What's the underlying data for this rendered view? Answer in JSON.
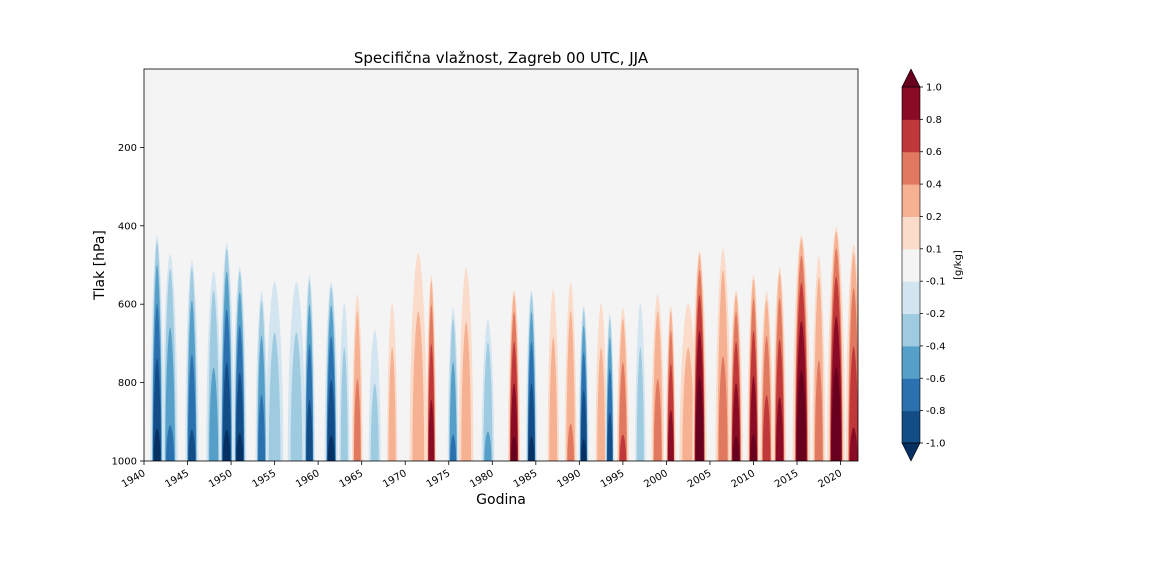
{
  "chart_data": {
    "type": "heatmap",
    "title": "Specifična vlažnost, Zagreb 00 UTC, JJA",
    "xlabel": "Godina",
    "ylabel": "Tlak [hPa]",
    "x_ticks": [
      "1940",
      "1945",
      "1950",
      "1955",
      "1960",
      "1965",
      "1970",
      "1975",
      "1980",
      "1985",
      "1990",
      "1995",
      "2000",
      "2005",
      "2010",
      "2015",
      "2020"
    ],
    "y_ticks": [
      "200",
      "400",
      "600",
      "800",
      "1000"
    ],
    "xlim": [
      1940,
      2022
    ],
    "ylim": [
      1000,
      0
    ],
    "y_reversed": true,
    "colorbar": {
      "label": "[g/kg]",
      "levels": [
        -1.0,
        -0.8,
        -0.6,
        -0.4,
        -0.2,
        -0.1,
        0.1,
        0.2,
        0.4,
        0.6,
        0.8,
        1.0
      ],
      "tick_labels": [
        "-1.0",
        "-0.8",
        "-0.6",
        "-0.4",
        "-0.2",
        "-0.1",
        "0.1",
        "0.2",
        "0.4",
        "0.6",
        "0.8",
        "1.0"
      ],
      "colors": [
        "#053061",
        "#134d87",
        "#2b71b0",
        "#569fc9",
        "#9fcbe1",
        "#d3e5f0",
        "#f4f4f4",
        "#fbdbc9",
        "#f6b192",
        "#e17860",
        "#c1383a",
        "#8a0b25",
        "#67001f"
      ],
      "extend": "both"
    },
    "anomaly_events": [
      {
        "year": 1941.5,
        "surface": -1.0,
        "top_pressure": 420,
        "width": 1.0
      },
      {
        "year": 1943.0,
        "surface": -0.6,
        "top_pressure": 460,
        "width": 1.2
      },
      {
        "year": 1945.5,
        "surface": -0.8,
        "top_pressure": 480,
        "width": 1.0
      },
      {
        "year": 1948.0,
        "surface": -0.5,
        "top_pressure": 500,
        "width": 1.2
      },
      {
        "year": 1949.5,
        "surface": -1.0,
        "top_pressure": 440,
        "width": 1.1
      },
      {
        "year": 1951.0,
        "surface": -1.0,
        "top_pressure": 500,
        "width": 1.0
      },
      {
        "year": 1953.5,
        "surface": -0.7,
        "top_pressure": 560,
        "width": 0.9
      },
      {
        "year": 1955.0,
        "surface": -0.3,
        "top_pressure": 500,
        "width": 1.5
      },
      {
        "year": 1957.5,
        "surface": -0.3,
        "top_pressure": 500,
        "width": 1.5
      },
      {
        "year": 1959.0,
        "surface": -0.9,
        "top_pressure": 520,
        "width": 0.8
      },
      {
        "year": 1961.5,
        "surface": -1.0,
        "top_pressure": 540,
        "width": 1.0
      },
      {
        "year": 1963.0,
        "surface": -0.3,
        "top_pressure": 560,
        "width": 0.8
      },
      {
        "year": 1964.5,
        "surface": 0.5,
        "top_pressure": 560,
        "width": 0.8
      },
      {
        "year": 1966.5,
        "surface": -0.25,
        "top_pressure": 620,
        "width": 1.0
      },
      {
        "year": 1968.5,
        "surface": 0.3,
        "top_pressure": 560,
        "width": 0.8
      },
      {
        "year": 1971.5,
        "surface": 0.3,
        "top_pressure": 420,
        "width": 1.5
      },
      {
        "year": 1973.0,
        "surface": 0.9,
        "top_pressure": 520,
        "width": 0.7
      },
      {
        "year": 1975.5,
        "surface": -0.6,
        "top_pressure": 600,
        "width": 0.8
      },
      {
        "year": 1977.0,
        "surface": 0.3,
        "top_pressure": 460,
        "width": 1.2
      },
      {
        "year": 1979.5,
        "surface": -0.4,
        "top_pressure": 620,
        "width": 1.0
      },
      {
        "year": 1982.5,
        "surface": 1.0,
        "top_pressure": 560,
        "width": 0.9
      },
      {
        "year": 1984.5,
        "surface": -1.0,
        "top_pressure": 560,
        "width": 0.8
      },
      {
        "year": 1987.0,
        "surface": 0.3,
        "top_pressure": 520,
        "width": 0.9
      },
      {
        "year": 1989.0,
        "surface": 0.4,
        "top_pressure": 520,
        "width": 0.9
      },
      {
        "year": 1990.5,
        "surface": -1.0,
        "top_pressure": 600,
        "width": 0.7
      },
      {
        "year": 1992.5,
        "surface": 0.3,
        "top_pressure": 560,
        "width": 0.9
      },
      {
        "year": 1993.5,
        "surface": -0.9,
        "top_pressure": 620,
        "width": 0.6
      },
      {
        "year": 1995.0,
        "surface": 0.6,
        "top_pressure": 600,
        "width": 0.9
      },
      {
        "year": 1997.0,
        "surface": -0.3,
        "top_pressure": 560,
        "width": 0.8
      },
      {
        "year": 1999.0,
        "surface": 0.5,
        "top_pressure": 560,
        "width": 1.0
      },
      {
        "year": 2000.5,
        "surface": 0.9,
        "top_pressure": 600,
        "width": 0.7
      },
      {
        "year": 2002.5,
        "surface": 0.3,
        "top_pressure": 560,
        "width": 1.5
      },
      {
        "year": 2003.8,
        "surface": 1.2,
        "top_pressure": 460,
        "width": 1.1
      },
      {
        "year": 2006.5,
        "surface": 0.5,
        "top_pressure": 440,
        "width": 1.2
      },
      {
        "year": 2008.0,
        "surface": 1.0,
        "top_pressure": 560,
        "width": 1.0
      },
      {
        "year": 2010.0,
        "surface": 1.0,
        "top_pressure": 520,
        "width": 0.9
      },
      {
        "year": 2011.5,
        "surface": 0.7,
        "top_pressure": 560,
        "width": 1.0
      },
      {
        "year": 2013.0,
        "surface": 0.9,
        "top_pressure": 500,
        "width": 1.0
      },
      {
        "year": 2015.5,
        "surface": 1.2,
        "top_pressure": 420,
        "width": 1.4
      },
      {
        "year": 2017.5,
        "surface": 0.5,
        "top_pressure": 460,
        "width": 1.0
      },
      {
        "year": 2019.5,
        "surface": 1.2,
        "top_pressure": 400,
        "width": 1.4
      },
      {
        "year": 2021.5,
        "surface": 0.8,
        "top_pressure": 440,
        "width": 1.2
      }
    ]
  }
}
